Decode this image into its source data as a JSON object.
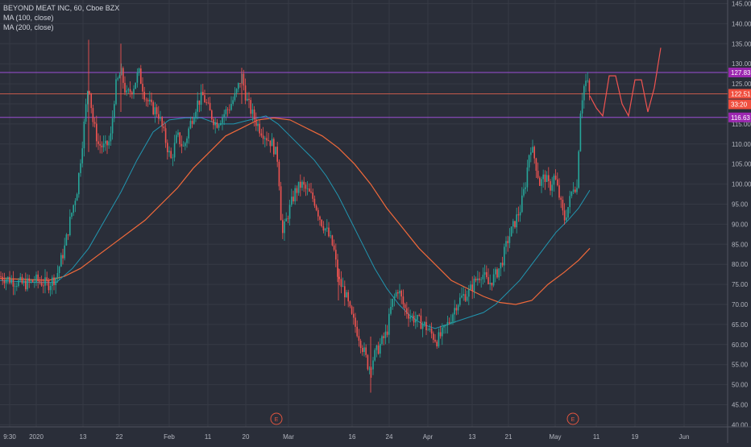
{
  "legend": {
    "symbol": "BEYOND MEAT INC, 60, Cboe BZX",
    "ma100": "MA (100, close)",
    "ma200": "MA (200, close)"
  },
  "colors": {
    "background": "#2a2e39",
    "grid": "#363a45",
    "axis_text": "#b2b5be",
    "candle_up": "#26a69a",
    "candle_down": "#ef5350",
    "ma100": "#2196b0",
    "ma200": "#f0693a",
    "resistance_line": "#9c4fd6",
    "support_line": "#c45a4a",
    "projection": "#ef5350",
    "price_tag_purple": "#9c27b0",
    "price_tag_red": "#f04f3f",
    "earnings_marker": "#e2553f"
  },
  "price_axis": {
    "labels": [
      "145.00",
      "140.00",
      "135.00",
      "130.00",
      "125.00",
      "120.00",
      "115.00",
      "110.00",
      "105.00",
      "100.00",
      "95.00",
      "90.00",
      "85.00",
      "80.00",
      "75.00",
      "70.00",
      "65.00",
      "60.00",
      "55.00",
      "50.00",
      "45.00",
      "40.00"
    ]
  },
  "time_axis": {
    "labels": [
      "9:30",
      "2020",
      "13",
      "22",
      "Feb",
      "11",
      "20",
      "Mar",
      "16",
      "24",
      "Apr",
      "13",
      "21",
      "May",
      "11",
      "19",
      "Jun"
    ]
  },
  "price_tags": [
    {
      "text": "127.83",
      "color": "purple"
    },
    {
      "text": "122.51",
      "color": "red"
    },
    {
      "text": "33:20",
      "color": "red"
    },
    {
      "text": "116.63",
      "color": "purple"
    }
  ],
  "earnings_markers": [
    {
      "label": "E",
      "near": "Feb 27"
    },
    {
      "label": "E",
      "near": "May 5"
    }
  ],
  "chart_data": {
    "type": "candlestick",
    "title": "BEYOND MEAT INC, 60, Cboe BZX",
    "ylim": [
      40,
      145
    ],
    "horizontal_levels": [
      127.83,
      122.51,
      116.63
    ],
    "series": [
      {
        "name": "MA (100, close)",
        "type": "line",
        "color": "#2196b0"
      },
      {
        "name": "MA (200, close)",
        "type": "line",
        "color": "#f0693a"
      }
    ],
    "price_path": [
      {
        "x": 0,
        "y": 77
      },
      {
        "x": 15,
        "y": 76
      },
      {
        "x": 30,
        "y": 75
      },
      {
        "x": 45,
        "y": 76
      },
      {
        "x": 60,
        "y": 75
      },
      {
        "x": 70,
        "y": 77
      },
      {
        "x": 80,
        "y": 84
      },
      {
        "x": 88,
        "y": 92
      },
      {
        "x": 96,
        "y": 99
      },
      {
        "x": 103,
        "y": 112
      },
      {
        "x": 110,
        "y": 126
      },
      {
        "x": 115,
        "y": 116
      },
      {
        "x": 122,
        "y": 110
      },
      {
        "x": 130,
        "y": 109
      },
      {
        "x": 137,
        "y": 111
      },
      {
        "x": 143,
        "y": 124
      },
      {
        "x": 150,
        "y": 128
      },
      {
        "x": 157,
        "y": 122
      },
      {
        "x": 165,
        "y": 124
      },
      {
        "x": 172,
        "y": 128
      },
      {
        "x": 180,
        "y": 122
      },
      {
        "x": 188,
        "y": 119
      },
      {
        "x": 196,
        "y": 118
      },
      {
        "x": 204,
        "y": 112
      },
      {
        "x": 212,
        "y": 106
      },
      {
        "x": 220,
        "y": 112
      },
      {
        "x": 228,
        "y": 109
      },
      {
        "x": 236,
        "y": 115
      },
      {
        "x": 244,
        "y": 120
      },
      {
        "x": 252,
        "y": 122
      },
      {
        "x": 260,
        "y": 118
      },
      {
        "x": 268,
        "y": 115
      },
      {
        "x": 276,
        "y": 117
      },
      {
        "x": 284,
        "y": 119
      },
      {
        "x": 292,
        "y": 122
      },
      {
        "x": 300,
        "y": 127
      },
      {
        "x": 306,
        "y": 121
      },
      {
        "x": 314,
        "y": 117
      },
      {
        "x": 322,
        "y": 114
      },
      {
        "x": 330,
        "y": 112
      },
      {
        "x": 338,
        "y": 110
      },
      {
        "x": 345,
        "y": 106
      },
      {
        "x": 350,
        "y": 87
      },
      {
        "x": 358,
        "y": 93
      },
      {
        "x": 366,
        "y": 98
      },
      {
        "x": 374,
        "y": 100
      },
      {
        "x": 382,
        "y": 98
      },
      {
        "x": 390,
        "y": 96
      },
      {
        "x": 398,
        "y": 91
      },
      {
        "x": 406,
        "y": 88
      },
      {
        "x": 414,
        "y": 84
      },
      {
        "x": 420,
        "y": 76
      },
      {
        "x": 428,
        "y": 73
      },
      {
        "x": 436,
        "y": 67
      },
      {
        "x": 444,
        "y": 63
      },
      {
        "x": 452,
        "y": 58
      },
      {
        "x": 458,
        "y": 54
      },
      {
        "x": 464,
        "y": 57
      },
      {
        "x": 472,
        "y": 60
      },
      {
        "x": 480,
        "y": 63
      },
      {
        "x": 486,
        "y": 70
      },
      {
        "x": 494,
        "y": 74
      },
      {
        "x": 502,
        "y": 69
      },
      {
        "x": 510,
        "y": 67
      },
      {
        "x": 518,
        "y": 66
      },
      {
        "x": 526,
        "y": 65
      },
      {
        "x": 534,
        "y": 63
      },
      {
        "x": 542,
        "y": 61
      },
      {
        "x": 550,
        "y": 63
      },
      {
        "x": 558,
        "y": 66
      },
      {
        "x": 566,
        "y": 70
      },
      {
        "x": 574,
        "y": 72
      },
      {
        "x": 582,
        "y": 73
      },
      {
        "x": 590,
        "y": 76
      },
      {
        "x": 598,
        "y": 78
      },
      {
        "x": 606,
        "y": 75
      },
      {
        "x": 614,
        "y": 77
      },
      {
        "x": 622,
        "y": 80
      },
      {
        "x": 630,
        "y": 86
      },
      {
        "x": 638,
        "y": 90
      },
      {
        "x": 646,
        "y": 94
      },
      {
        "x": 652,
        "y": 100
      },
      {
        "x": 658,
        "y": 110
      },
      {
        "x": 664,
        "y": 106
      },
      {
        "x": 670,
        "y": 100
      },
      {
        "x": 676,
        "y": 102
      },
      {
        "x": 682,
        "y": 99
      },
      {
        "x": 688,
        "y": 102
      },
      {
        "x": 694,
        "y": 97
      },
      {
        "x": 700,
        "y": 91
      },
      {
        "x": 706,
        "y": 95
      },
      {
        "x": 712,
        "y": 100
      },
      {
        "x": 716,
        "y": 99
      },
      {
        "x": 720,
        "y": 118
      },
      {
        "x": 724,
        "y": 124
      },
      {
        "x": 728,
        "y": 126
      },
      {
        "x": 732,
        "y": 122
      }
    ],
    "ma100_path": [
      {
        "x": 0,
        "y": 76
      },
      {
        "x": 40,
        "y": 75.5
      },
      {
        "x": 70,
        "y": 75.5
      },
      {
        "x": 90,
        "y": 79
      },
      {
        "x": 110,
        "y": 84
      },
      {
        "x": 130,
        "y": 91
      },
      {
        "x": 150,
        "y": 98
      },
      {
        "x": 170,
        "y": 106
      },
      {
        "x": 190,
        "y": 113
      },
      {
        "x": 210,
        "y": 116
      },
      {
        "x": 230,
        "y": 116.5
      },
      {
        "x": 250,
        "y": 116.5
      },
      {
        "x": 270,
        "y": 115
      },
      {
        "x": 290,
        "y": 115
      },
      {
        "x": 310,
        "y": 116
      },
      {
        "x": 330,
        "y": 117
      },
      {
        "x": 345,
        "y": 115
      },
      {
        "x": 360,
        "y": 112
      },
      {
        "x": 375,
        "y": 109
      },
      {
        "x": 390,
        "y": 106
      },
      {
        "x": 405,
        "y": 102
      },
      {
        "x": 420,
        "y": 97
      },
      {
        "x": 435,
        "y": 91
      },
      {
        "x": 450,
        "y": 85
      },
      {
        "x": 465,
        "y": 79
      },
      {
        "x": 480,
        "y": 74
      },
      {
        "x": 495,
        "y": 70
      },
      {
        "x": 510,
        "y": 67
      },
      {
        "x": 525,
        "y": 65
      },
      {
        "x": 540,
        "y": 64
      },
      {
        "x": 555,
        "y": 65
      },
      {
        "x": 570,
        "y": 66
      },
      {
        "x": 585,
        "y": 67
      },
      {
        "x": 600,
        "y": 68
      },
      {
        "x": 615,
        "y": 70
      },
      {
        "x": 630,
        "y": 73
      },
      {
        "x": 645,
        "y": 76
      },
      {
        "x": 660,
        "y": 80
      },
      {
        "x": 675,
        "y": 84
      },
      {
        "x": 690,
        "y": 88
      },
      {
        "x": 705,
        "y": 91
      },
      {
        "x": 718,
        "y": 94
      },
      {
        "x": 732,
        "y": 98.5
      }
    ],
    "ma200_path": [
      {
        "x": 0,
        "y": 76.5
      },
      {
        "x": 60,
        "y": 76
      },
      {
        "x": 80,
        "y": 77
      },
      {
        "x": 100,
        "y": 79
      },
      {
        "x": 120,
        "y": 82
      },
      {
        "x": 140,
        "y": 85
      },
      {
        "x": 160,
        "y": 88
      },
      {
        "x": 180,
        "y": 91
      },
      {
        "x": 200,
        "y": 95
      },
      {
        "x": 220,
        "y": 99
      },
      {
        "x": 240,
        "y": 104
      },
      {
        "x": 260,
        "y": 108
      },
      {
        "x": 280,
        "y": 112
      },
      {
        "x": 300,
        "y": 114
      },
      {
        "x": 320,
        "y": 116
      },
      {
        "x": 340,
        "y": 116.5
      },
      {
        "x": 360,
        "y": 116
      },
      {
        "x": 380,
        "y": 114
      },
      {
        "x": 400,
        "y": 112
      },
      {
        "x": 420,
        "y": 109
      },
      {
        "x": 440,
        "y": 105
      },
      {
        "x": 460,
        "y": 100
      },
      {
        "x": 480,
        "y": 94
      },
      {
        "x": 500,
        "y": 89
      },
      {
        "x": 520,
        "y": 84
      },
      {
        "x": 540,
        "y": 80
      },
      {
        "x": 560,
        "y": 76
      },
      {
        "x": 580,
        "y": 74
      },
      {
        "x": 600,
        "y": 72
      },
      {
        "x": 620,
        "y": 70.5
      },
      {
        "x": 640,
        "y": 70
      },
      {
        "x": 660,
        "y": 71
      },
      {
        "x": 680,
        "y": 75
      },
      {
        "x": 700,
        "y": 78
      },
      {
        "x": 718,
        "y": 81
      },
      {
        "x": 732,
        "y": 84
      }
    ],
    "projection_path": [
      {
        "x": 732,
        "y": 122
      },
      {
        "x": 740,
        "y": 119
      },
      {
        "x": 748,
        "y": 117
      },
      {
        "x": 756,
        "y": 127
      },
      {
        "x": 764,
        "y": 127
      },
      {
        "x": 772,
        "y": 120
      },
      {
        "x": 780,
        "y": 117
      },
      {
        "x": 788,
        "y": 126
      },
      {
        "x": 796,
        "y": 126
      },
      {
        "x": 804,
        "y": 118
      },
      {
        "x": 812,
        "y": 124
      },
      {
        "x": 820,
        "y": 134
      }
    ]
  }
}
